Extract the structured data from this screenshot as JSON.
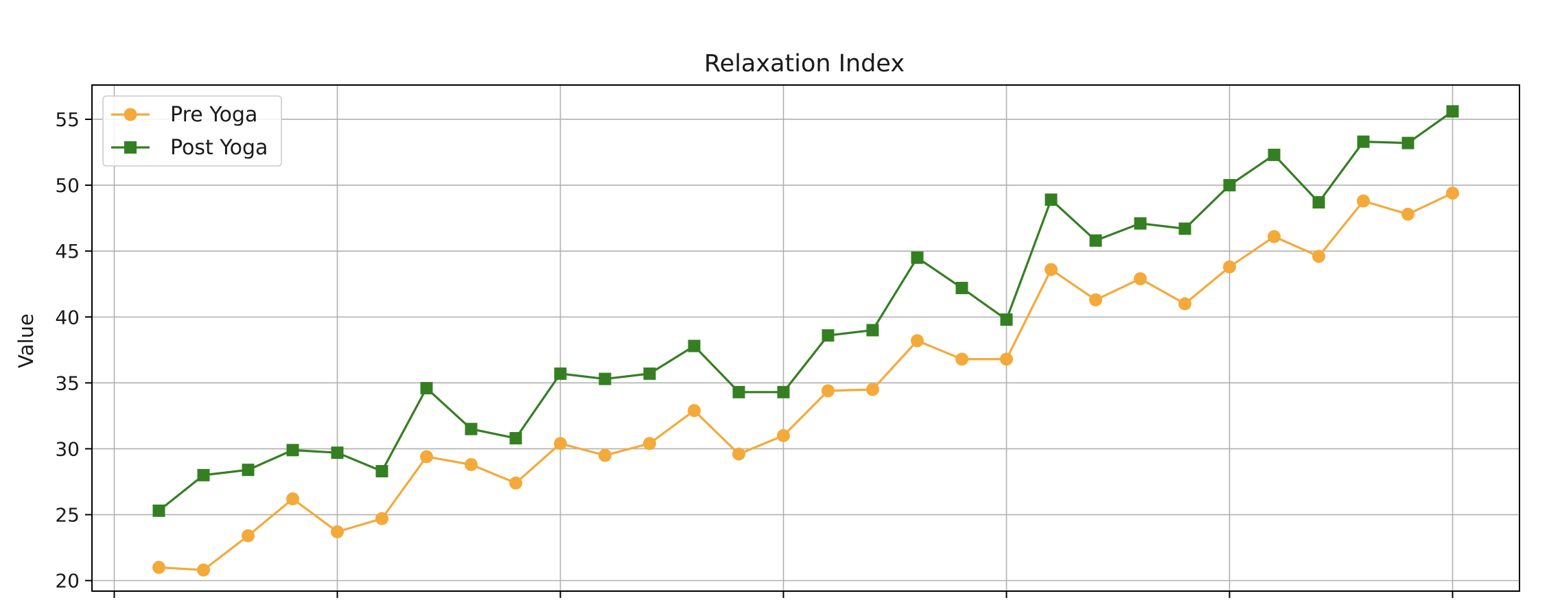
{
  "chart_data": {
    "type": "line",
    "title": "Relaxation Index",
    "xlabel": "",
    "ylabel": "Value",
    "x": [
      1,
      2,
      3,
      4,
      5,
      6,
      7,
      8,
      9,
      10,
      11,
      12,
      13,
      14,
      15,
      16,
      17,
      18,
      19,
      20,
      21,
      22,
      23,
      24,
      25,
      26,
      27,
      28,
      29,
      30
    ],
    "xlim": [
      -0.5,
      31.5
    ],
    "ylim": [
      19.2,
      57.6
    ],
    "yticks": [
      20,
      25,
      30,
      35,
      40,
      45,
      50,
      55
    ],
    "ytick_labels": [
      "20",
      "25",
      "30",
      "35",
      "40",
      "45",
      "50",
      "55"
    ],
    "xticks": [
      0,
      5,
      10,
      15,
      20,
      25,
      30
    ],
    "grid": true,
    "legend_position": "top-left",
    "series": [
      {
        "name": "Pre Yoga",
        "color": "#f4a93b",
        "marker": "circle",
        "values": [
          21.0,
          20.8,
          23.4,
          26.2,
          23.7,
          24.7,
          29.4,
          28.8,
          27.4,
          30.4,
          29.5,
          30.4,
          32.9,
          29.6,
          31.0,
          34.4,
          34.5,
          38.2,
          36.8,
          36.8,
          43.6,
          41.3,
          42.9,
          41.0,
          43.8,
          46.1,
          44.6,
          48.8,
          47.8,
          49.4
        ]
      },
      {
        "name": "Post Yoga",
        "color": "#347f22",
        "marker": "square",
        "values": [
          25.3,
          28.0,
          28.4,
          29.9,
          29.7,
          28.3,
          34.6,
          31.5,
          30.8,
          35.7,
          35.3,
          35.7,
          37.8,
          34.3,
          34.3,
          38.6,
          39.0,
          44.5,
          42.2,
          39.8,
          48.9,
          45.8,
          47.1,
          46.7,
          50.0,
          52.3,
          48.7,
          53.3,
          53.2,
          55.6
        ]
      }
    ]
  }
}
